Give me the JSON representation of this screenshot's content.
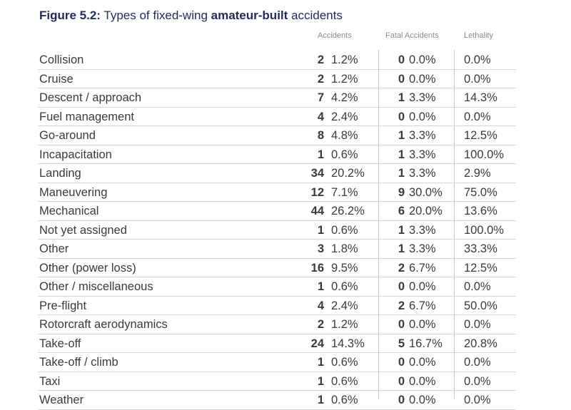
{
  "title": {
    "prefix": "Figure 5.2:",
    "part1": " Types of fixed-wing ",
    "bold": "amateur-built",
    "part2": " accidents"
  },
  "headers": {
    "accidents": "Accidents",
    "fatal": "Fatal Accidents",
    "lethality": "Lethality"
  },
  "rows": [
    {
      "cat": "Collision",
      "acc": "2",
      "acc_pct": "1.2%",
      "fatal": "0",
      "fatal_pct": "0.0%",
      "leth": "0.0%"
    },
    {
      "cat": "Cruise",
      "acc": "2",
      "acc_pct": "1.2%",
      "fatal": "0",
      "fatal_pct": "0.0%",
      "leth": "0.0%"
    },
    {
      "cat": "Descent / approach",
      "acc": "7",
      "acc_pct": "4.2%",
      "fatal": "1",
      "fatal_pct": "3.3%",
      "leth": "14.3%"
    },
    {
      "cat": "Fuel management",
      "acc": "4",
      "acc_pct": "2.4%",
      "fatal": "0",
      "fatal_pct": "0.0%",
      "leth": "0.0%"
    },
    {
      "cat": "Go-around",
      "acc": "8",
      "acc_pct": "4.8%",
      "fatal": "1",
      "fatal_pct": "3.3%",
      "leth": "12.5%"
    },
    {
      "cat": "Incapacitation",
      "acc": "1",
      "acc_pct": "0.6%",
      "fatal": "1",
      "fatal_pct": "3.3%",
      "leth": "100.0%"
    },
    {
      "cat": "Landing",
      "acc": "34",
      "acc_pct": "20.2%",
      "fatal": "1",
      "fatal_pct": "3.3%",
      "leth": "2.9%"
    },
    {
      "cat": "Maneuvering",
      "acc": "12",
      "acc_pct": "7.1%",
      "fatal": "9",
      "fatal_pct": "30.0%",
      "leth": "75.0%"
    },
    {
      "cat": "Mechanical",
      "acc": "44",
      "acc_pct": "26.2%",
      "fatal": "6",
      "fatal_pct": "20.0%",
      "leth": "13.6%"
    },
    {
      "cat": "Not yet assigned",
      "acc": "1",
      "acc_pct": "0.6%",
      "fatal": "1",
      "fatal_pct": "3.3%",
      "leth": "100.0%"
    },
    {
      "cat": "Other",
      "acc": "3",
      "acc_pct": "1.8%",
      "fatal": "1",
      "fatal_pct": "3.3%",
      "leth": "33.3%"
    },
    {
      "cat": "Other (power loss)",
      "acc": "16",
      "acc_pct": "9.5%",
      "fatal": "2",
      "fatal_pct": "6.7%",
      "leth": "12.5%"
    },
    {
      "cat": "Other / miscellaneous",
      "acc": "1",
      "acc_pct": "0.6%",
      "fatal": "0",
      "fatal_pct": "0.0%",
      "leth": "0.0%"
    },
    {
      "cat": "Pre-flight",
      "acc": "4",
      "acc_pct": "2.4%",
      "fatal": "2",
      "fatal_pct": "6.7%",
      "leth": "50.0%"
    },
    {
      "cat": "Rotorcraft aerodynamics",
      "acc": "2",
      "acc_pct": "1.2%",
      "fatal": "0",
      "fatal_pct": "0.0%",
      "leth": "0.0%"
    },
    {
      "cat": "Take-off",
      "acc": "24",
      "acc_pct": "14.3%",
      "fatal": "5",
      "fatal_pct": "16.7%",
      "leth": "20.8%"
    },
    {
      "cat": "Take-off / climb",
      "acc": "1",
      "acc_pct": "0.6%",
      "fatal": "0",
      "fatal_pct": "0.0%",
      "leth": "0.0%"
    },
    {
      "cat": "Taxi",
      "acc": "1",
      "acc_pct": "0.6%",
      "fatal": "0",
      "fatal_pct": "0.0%",
      "leth": "0.0%"
    },
    {
      "cat": "Weather",
      "acc": "1",
      "acc_pct": "0.6%",
      "fatal": "0",
      "fatal_pct": "0.0%",
      "leth": "0.0%"
    }
  ]
}
